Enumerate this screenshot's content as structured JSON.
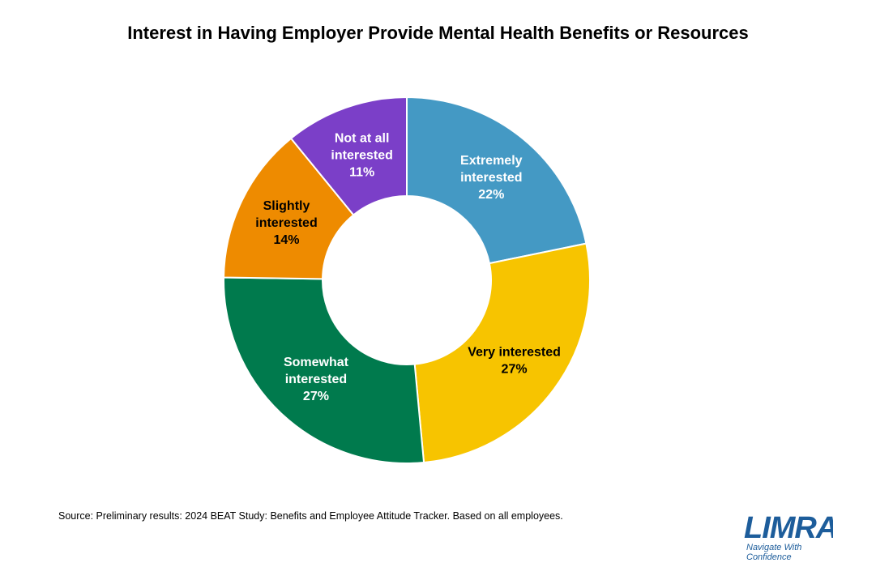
{
  "title": "Interest in Having Employer Provide Mental Health Benefits or Resources",
  "source": "Source: Preliminary results: 2024 BEAT Study: Benefits and Employee Attitude Tracker. Based on all employees.",
  "logo": {
    "name": "LIMRA",
    "tagline_line1": "Navigate With",
    "tagline_line2": "Confidence",
    "color": "#1d5d9b"
  },
  "chart_data": {
    "type": "pie",
    "donut": true,
    "unit": "%",
    "slices": [
      {
        "label_lines": [
          "Extremely",
          "interested"
        ],
        "value": 22,
        "value_label": "22%",
        "color": "#4499c4",
        "text_color": "#ffffff"
      },
      {
        "label_lines": [
          "Very interested"
        ],
        "value": 27,
        "value_label": "27%",
        "color": "#f7c400",
        "text_color": "#000000"
      },
      {
        "label_lines": [
          "Somewhat",
          "interested"
        ],
        "value": 27,
        "value_label": "27%",
        "color": "#007a4d",
        "text_color": "#ffffff"
      },
      {
        "label_lines": [
          "Slightly",
          "interested"
        ],
        "value": 14,
        "value_label": "14%",
        "color": "#ee8b00",
        "text_color": "#000000"
      },
      {
        "label_lines": [
          "Not at all",
          "interested"
        ],
        "value": 11,
        "value_label": "11%",
        "color": "#7b3fc8",
        "text_color": "#ffffff"
      }
    ]
  }
}
